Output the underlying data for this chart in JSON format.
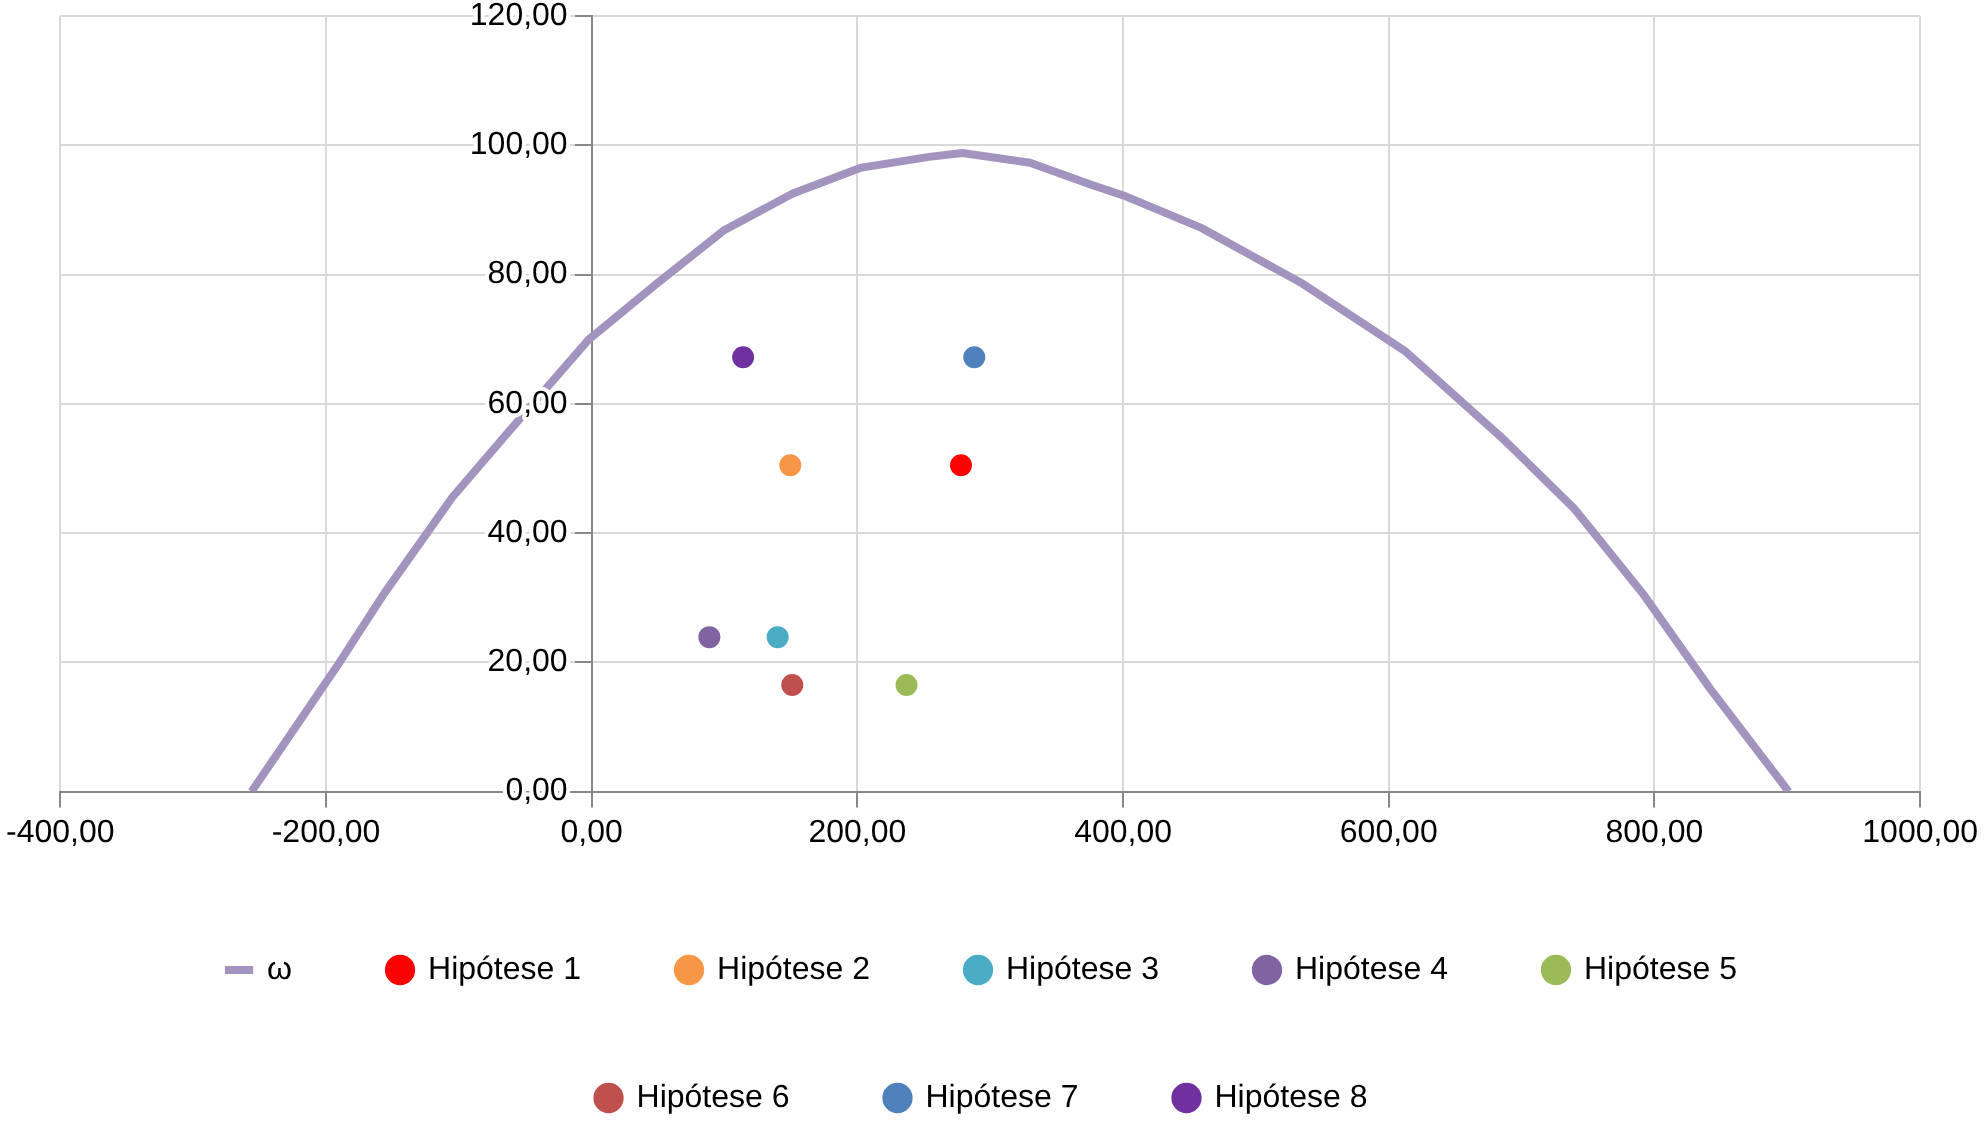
{
  "chart_data": {
    "type": "scatter",
    "xlim": [
      -400,
      1000
    ],
    "xticks": [
      {
        "value": -400,
        "label": "-400,00"
      },
      {
        "value": -200,
        "label": "-200,00"
      },
      {
        "value": 0,
        "label": "0,00"
      },
      {
        "value": 200,
        "label": "200,00"
      },
      {
        "value": 400,
        "label": "400,00"
      },
      {
        "value": 600,
        "label": "600,00"
      },
      {
        "value": 800,
        "label": "800,00"
      },
      {
        "value": 1000,
        "label": "1000,00"
      }
    ],
    "ylim": [
      0,
      120
    ],
    "yticks": [
      {
        "value": 0,
        "label": "0,00"
      },
      {
        "value": 20,
        "label": "20,00"
      },
      {
        "value": 40,
        "label": "40,00"
      },
      {
        "value": 60,
        "label": "60,00"
      },
      {
        "value": 80,
        "label": "80,00"
      },
      {
        "value": 100,
        "label": "100,00"
      },
      {
        "value": 120,
        "label": "120,00"
      }
    ],
    "grid": true,
    "legend": "bottom",
    "marker": "circle",
    "series": [
      {
        "name": "ω",
        "type": "line",
        "marker": "none",
        "color": "#a294bf",
        "x": [
          -256,
          -192,
          -156,
          -105,
          -54,
          -2.5,
          49,
          100,
          151,
          202,
          254,
          279,
          330,
          376,
          402,
          458,
          535,
          612,
          688,
          740,
          791,
          842,
          901
        ],
        "values": [
          0,
          19.3,
          30.7,
          45.5,
          57.7,
          69.9,
          78.6,
          86.9,
          92.5,
          96.5,
          98.2,
          98.8,
          97.3,
          93.9,
          92.1,
          87.3,
          78.6,
          68.2,
          54.2,
          43.7,
          30.7,
          15.9,
          0
        ]
      },
      {
        "name": "Hipótese 1",
        "color": "#ff0000",
        "x": [
          278
        ],
        "values": [
          50.5
        ]
      },
      {
        "name": "Hipótese 2",
        "color": "#f79646",
        "x": [
          149.5
        ],
        "values": [
          50.5
        ]
      },
      {
        "name": "Hipótese 3",
        "color": "#4bacc6",
        "x": [
          140
        ],
        "values": [
          23.9
        ]
      },
      {
        "name": "Hipótese 4",
        "color": "#8064a2",
        "x": [
          88.6
        ],
        "values": [
          23.9
        ]
      },
      {
        "name": "Hipótese 5",
        "color": "#9bbb59",
        "x": [
          237
        ],
        "values": [
          16.5
        ]
      },
      {
        "name": "Hipótese 6",
        "color": "#c0504d",
        "x": [
          151
        ],
        "values": [
          16.5
        ]
      },
      {
        "name": "Hipótese 7",
        "color": "#4f81bd",
        "x": [
          288
        ],
        "values": [
          67.2
        ]
      },
      {
        "name": "Hipótese 8",
        "color": "#7030a0",
        "x": [
          114
        ],
        "values": [
          67.2
        ]
      }
    ]
  }
}
